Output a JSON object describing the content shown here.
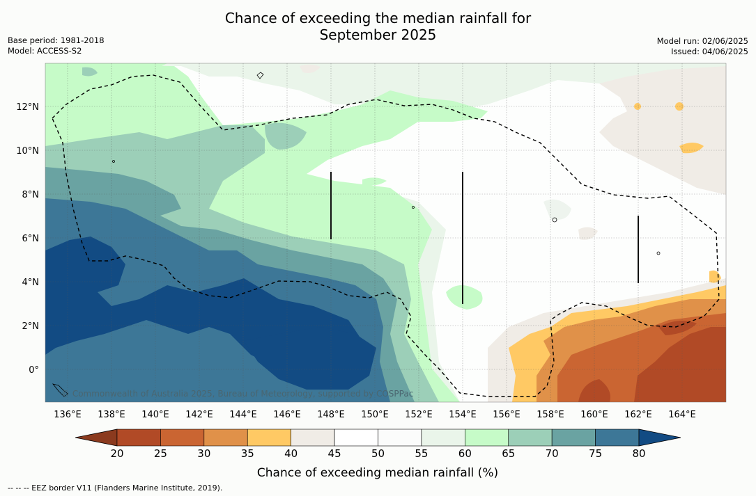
{
  "title_line1": "Chance of exceeding the median rainfall for",
  "title_line2": "September 2025",
  "meta_left": {
    "base_period": "Base period: 1981-2018",
    "model": "Model: ACCESS-S2"
  },
  "meta_right": {
    "model_run": "Model run: 02/06/2025",
    "issued": "Issued: 04/06/2025"
  },
  "copyright": "© Commonwealth of Australia 2025, Bureau of Meteorology, supported by COSPPac",
  "lon_ticks": [
    "136°E",
    "138°E",
    "140°E",
    "142°E",
    "144°E",
    "146°E",
    "148°E",
    "150°E",
    "152°E",
    "154°E",
    "156°E",
    "158°E",
    "160°E",
    "162°E",
    "164°E"
  ],
  "lat_ticks": [
    "12°N",
    "10°N",
    "8°N",
    "6°N",
    "4°N",
    "2°N",
    "0°"
  ],
  "colorbar": {
    "title": "Chance of exceeding median rainfall (%)",
    "labels": [
      "20",
      "25",
      "30",
      "35",
      "40",
      "45",
      "50",
      "55",
      "60",
      "65",
      "70",
      "75",
      "80"
    ],
    "colors": [
      "#8b3a1e",
      "#b14a26",
      "#ca6532",
      "#e09149",
      "#ffc964",
      "#f0ece6",
      "#ffffff",
      "#fbfcfb",
      "#eaf5ea",
      "#c6fbc8",
      "#9ccfb8",
      "#6aa3a2",
      "#3d7797",
      "#124b83"
    ]
  },
  "legend_footnote": "--  --  -- EEZ border V11 (Flanders Marine Institute, 2019)."
}
